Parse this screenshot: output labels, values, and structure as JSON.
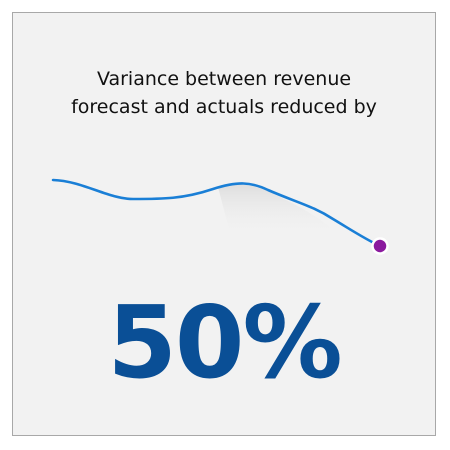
{
  "infographic": {
    "headline_line1": "Variance between revenue",
    "headline_line2": "forecast and actuals reduced by",
    "value": "50%"
  },
  "colors": {
    "background": "#f2f2f2",
    "line": "#1a7fd6",
    "endpoint": "#8b1a9e",
    "value": "#0a4f96"
  },
  "icons": {
    "trend": "downward-trend-line-icon"
  }
}
